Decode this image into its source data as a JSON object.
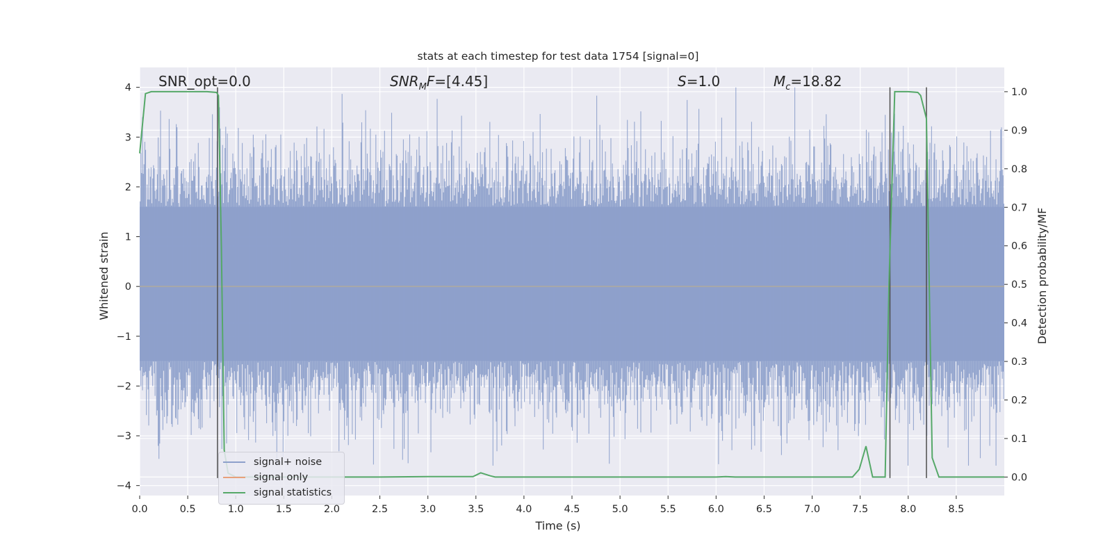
{
  "chart_data": {
    "type": "line",
    "title": "stats at each timestep for test data 1754 [signal=0]",
    "xlabel": "Time (s)",
    "ylabel_left": "Whitened strain",
    "ylabel_right": "Detection probability/MF",
    "xlim": [
      0.0,
      9.0
    ],
    "ylim_left": [
      -4.2,
      4.4
    ],
    "ylim_right": [
      -0.048,
      1.063
    ],
    "x_ticks": [
      "0.0",
      "0.5",
      "1.0",
      "1.5",
      "2.0",
      "2.5",
      "3.0",
      "3.5",
      "4.0",
      "4.5",
      "5.0",
      "5.5",
      "6.0",
      "6.5",
      "7.0",
      "7.5",
      "8.0",
      "8.5"
    ],
    "y_left_ticks": [
      "−4",
      "−3",
      "−2",
      "−1",
      "0",
      "1",
      "2",
      "3",
      "4"
    ],
    "y_right_ticks": [
      "0.0",
      "0.1",
      "0.2",
      "0.3",
      "0.4",
      "0.5",
      "0.6",
      "0.7",
      "0.8",
      "0.9",
      "1.0"
    ],
    "grid": true,
    "legend_position": "lower-left",
    "annotations": [
      {
        "label": "SNR_opt=0.0"
      },
      {
        "label": "SNR_M F=[4.45]"
      },
      {
        "label": "S=1.0"
      },
      {
        "label": "M_c=18.82"
      }
    ],
    "vertical_lines_x": [
      0.81,
      7.81,
      8.19
    ],
    "series": [
      {
        "name": "signal+ noise",
        "color": "#8da0cb",
        "axis": "left",
        "noise_envelope": {
          "core": [
            -1.5,
            1.6
          ],
          "extremes": [
            -3.6,
            4.0
          ]
        }
      },
      {
        "name": "signal only",
        "color": "#e8a07a",
        "axis": "left",
        "x": [
          0.0,
          9.0
        ],
        "y": [
          0.0,
          0.0
        ]
      },
      {
        "name": "signal statistics",
        "color": "#55a868",
        "axis": "right",
        "x": [
          0.0,
          0.06,
          0.12,
          0.2,
          0.3,
          0.4,
          0.5,
          0.6,
          0.7,
          0.8,
          0.82,
          0.85,
          0.88,
          0.92,
          1.0,
          1.5,
          2.0,
          2.5,
          3.0,
          3.47,
          3.55,
          3.65,
          3.7,
          4.0,
          5.0,
          6.0,
          6.1,
          6.2,
          7.0,
          7.42,
          7.49,
          7.56,
          7.63,
          7.7,
          7.76,
          7.8,
          7.86,
          7.92,
          8.0,
          8.1,
          8.13,
          8.19,
          8.25,
          8.32,
          8.4,
          8.6,
          8.8,
          9.0
        ],
        "y": [
          0.84,
          0.995,
          1.0,
          1.0,
          1.0,
          1.0,
          1.0,
          1.0,
          1.0,
          0.998,
          0.99,
          0.6,
          0.07,
          0.01,
          0.0,
          0.0,
          0.0,
          0.0,
          0.001,
          0.001,
          0.011,
          0.003,
          0.0,
          0.0,
          0.0,
          0.0,
          0.001,
          0.0,
          0.0,
          0.0,
          0.02,
          0.08,
          0.0,
          0.0,
          0.0,
          0.5,
          1.0,
          1.0,
          1.0,
          0.998,
          0.99,
          0.93,
          0.05,
          0.0,
          0.0,
          0.0,
          0.0,
          0.0
        ]
      }
    ]
  },
  "colors": {
    "plot_background": "#eaeaf2",
    "grid": "#ffffff",
    "vertical_line": "#4d4d4d",
    "zero_line": "#a8a8a8"
  }
}
